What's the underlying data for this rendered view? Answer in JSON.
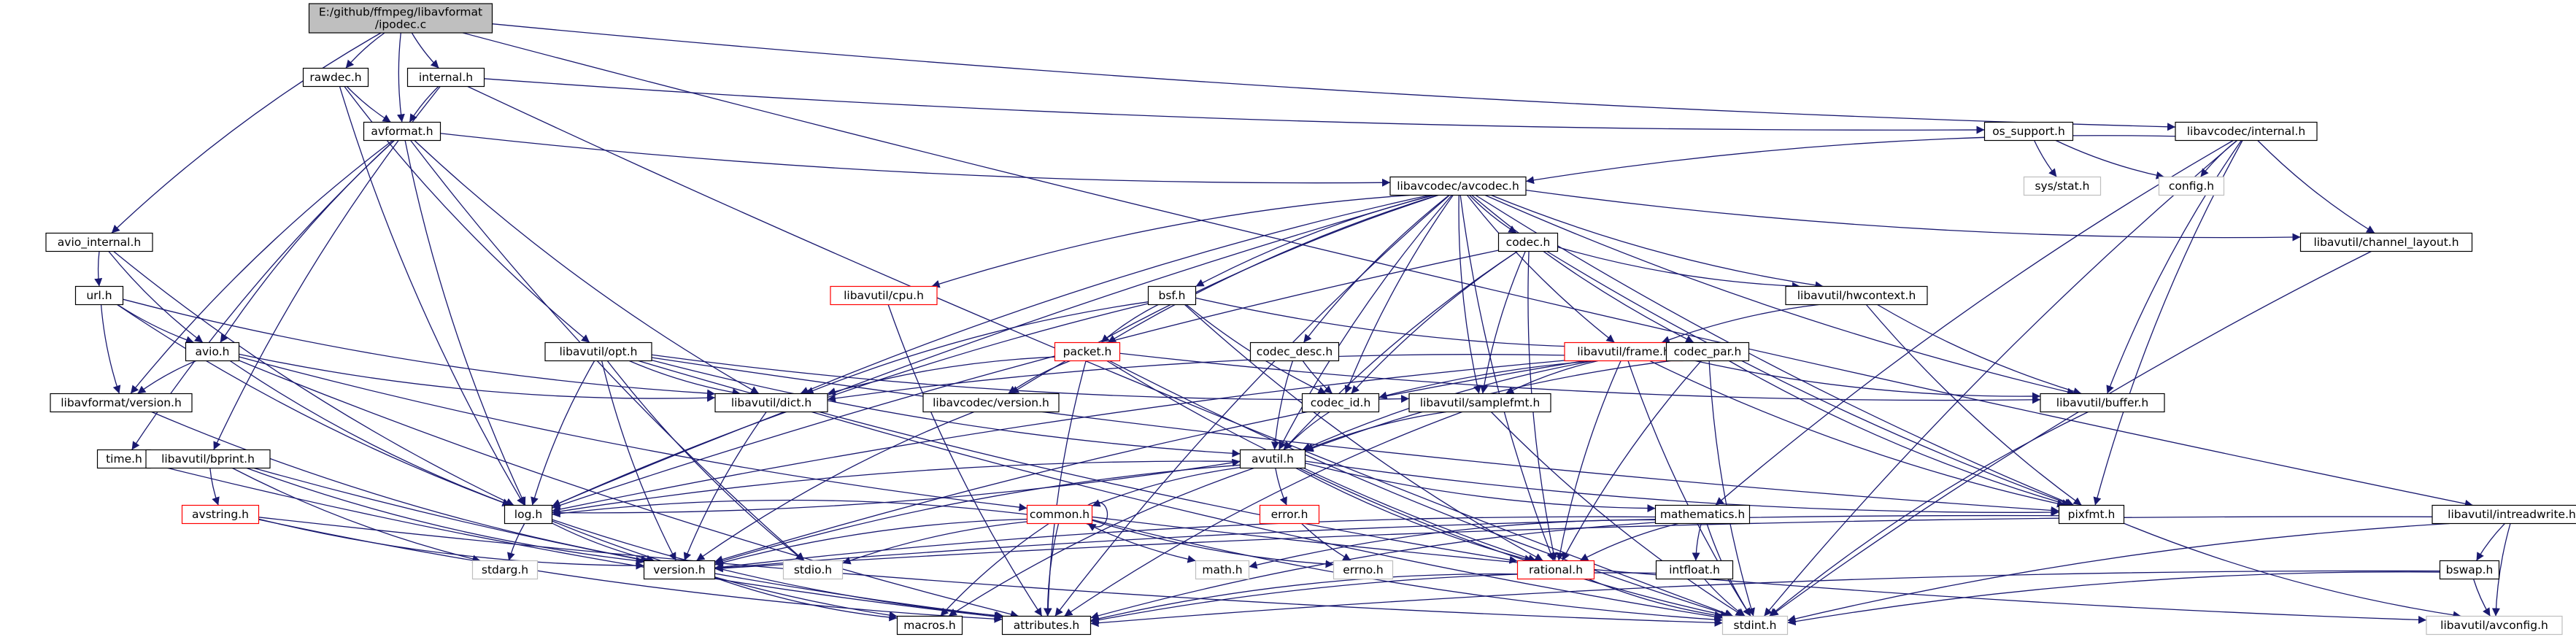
{
  "colors": {
    "edge": "#191970",
    "node_fill": "#ffffff",
    "node_border": "#000000",
    "root_fill": "#bfbfbf",
    "root_border": "#000000",
    "incomplete_border": "#ff0000",
    "missing_border": "#bfbfbf",
    "missing_text": "#7f7f7f"
  },
  "graph": {
    "nodes": [
      {
        "id": "ipodec",
        "lines": [
          "E:/github/ffmpeg/libavformat",
          "/ipodec.c"
        ],
        "kind": "root"
      },
      {
        "id": "rawdec",
        "lines": [
          "rawdec.h"
        ],
        "kind": "normal"
      },
      {
        "id": "internal",
        "lines": [
          "internal.h"
        ],
        "kind": "normal"
      },
      {
        "id": "avformat",
        "lines": [
          "avformat.h"
        ],
        "kind": "normal"
      },
      {
        "id": "os_support",
        "lines": [
          "os_support.h"
        ],
        "kind": "normal"
      },
      {
        "id": "lc_internal",
        "lines": [
          "libavcodec/internal.h"
        ],
        "kind": "normal"
      },
      {
        "id": "sys_stat",
        "lines": [
          "sys/stat.h"
        ],
        "kind": "missing"
      },
      {
        "id": "config",
        "lines": [
          "config.h"
        ],
        "kind": "missing"
      },
      {
        "id": "avcodec",
        "lines": [
          "libavcodec/avcodec.h"
        ],
        "kind": "normal"
      },
      {
        "id": "avio_internal",
        "lines": [
          "avio_internal.h"
        ],
        "kind": "normal"
      },
      {
        "id": "codec",
        "lines": [
          "codec.h"
        ],
        "kind": "normal"
      },
      {
        "id": "chlayout",
        "lines": [
          "libavutil/channel_layout.h"
        ],
        "kind": "normal"
      },
      {
        "id": "cpu",
        "lines": [
          "libavutil/cpu.h"
        ],
        "kind": "incomplete"
      },
      {
        "id": "bsf",
        "lines": [
          "bsf.h"
        ],
        "kind": "normal"
      },
      {
        "id": "hwcontext",
        "lines": [
          "libavutil/hwcontext.h"
        ],
        "kind": "normal"
      },
      {
        "id": "url",
        "lines": [
          "url.h"
        ],
        "kind": "normal"
      },
      {
        "id": "avio",
        "lines": [
          "avio.h"
        ],
        "kind": "normal"
      },
      {
        "id": "opt",
        "lines": [
          "libavutil/opt.h"
        ],
        "kind": "normal"
      },
      {
        "id": "packet",
        "lines": [
          "packet.h"
        ],
        "kind": "incomplete"
      },
      {
        "id": "codec_desc",
        "lines": [
          "codec_desc.h"
        ],
        "kind": "normal"
      },
      {
        "id": "frame",
        "lines": [
          "libavutil/frame.h"
        ],
        "kind": "incomplete"
      },
      {
        "id": "codec_par",
        "lines": [
          "codec_par.h"
        ],
        "kind": "normal"
      },
      {
        "id": "lf_version",
        "lines": [
          "libavformat/version.h"
        ],
        "kind": "normal"
      },
      {
        "id": "dict",
        "lines": [
          "libavutil/dict.h"
        ],
        "kind": "normal"
      },
      {
        "id": "lc_version",
        "lines": [
          "libavcodec/version.h"
        ],
        "kind": "normal"
      },
      {
        "id": "codec_id",
        "lines": [
          "codec_id.h"
        ],
        "kind": "normal"
      },
      {
        "id": "samplefmt",
        "lines": [
          "libavutil/samplefmt.h"
        ],
        "kind": "normal"
      },
      {
        "id": "buffer",
        "lines": [
          "libavutil/buffer.h"
        ],
        "kind": "normal"
      },
      {
        "id": "avutil",
        "lines": [
          "avutil.h"
        ],
        "kind": "normal"
      },
      {
        "id": "time",
        "lines": [
          "time.h"
        ],
        "kind": "normal"
      },
      {
        "id": "bprint",
        "lines": [
          "libavutil/bprint.h"
        ],
        "kind": "normal"
      },
      {
        "id": "intreadwrite",
        "lines": [
          "libavutil/intreadwrite.h"
        ],
        "kind": "normal"
      },
      {
        "id": "avstring",
        "lines": [
          "avstring.h"
        ],
        "kind": "incomplete"
      },
      {
        "id": "log",
        "lines": [
          "log.h"
        ],
        "kind": "normal"
      },
      {
        "id": "common",
        "lines": [
          "common.h"
        ],
        "kind": "incomplete"
      },
      {
        "id": "error",
        "lines": [
          "error.h"
        ],
        "kind": "incomplete"
      },
      {
        "id": "mathematics",
        "lines": [
          "mathematics.h"
        ],
        "kind": "normal"
      },
      {
        "id": "pixfmt",
        "lines": [
          "pixfmt.h"
        ],
        "kind": "normal"
      },
      {
        "id": "stdarg",
        "lines": [
          "stdarg.h"
        ],
        "kind": "missing"
      },
      {
        "id": "version",
        "lines": [
          "version.h"
        ],
        "kind": "normal"
      },
      {
        "id": "stdio",
        "lines": [
          "stdio.h"
        ],
        "kind": "missing"
      },
      {
        "id": "math",
        "lines": [
          "math.h"
        ],
        "kind": "missing"
      },
      {
        "id": "errno",
        "lines": [
          "errno.h"
        ],
        "kind": "missing"
      },
      {
        "id": "rational",
        "lines": [
          "rational.h"
        ],
        "kind": "incomplete"
      },
      {
        "id": "intfloat",
        "lines": [
          "intfloat.h"
        ],
        "kind": "normal"
      },
      {
        "id": "bswap",
        "lines": [
          "bswap.h"
        ],
        "kind": "normal"
      },
      {
        "id": "macros",
        "lines": [
          "macros.h"
        ],
        "kind": "normal"
      },
      {
        "id": "attributes",
        "lines": [
          "attributes.h"
        ],
        "kind": "normal"
      },
      {
        "id": "stdint",
        "lines": [
          "stdint.h"
        ],
        "kind": "missing"
      },
      {
        "id": "avconfig",
        "lines": [
          "libavutil/avconfig.h"
        ],
        "kind": "missing"
      }
    ],
    "edges": [
      [
        "ipodec",
        "rawdec"
      ],
      [
        "ipodec",
        "internal"
      ],
      [
        "ipodec",
        "avformat"
      ],
      [
        "ipodec",
        "avio_internal"
      ],
      [
        "ipodec",
        "lc_internal"
      ],
      [
        "ipodec",
        "intreadwrite"
      ],
      [
        "rawdec",
        "avformat"
      ],
      [
        "rawdec",
        "log"
      ],
      [
        "rawdec",
        "opt"
      ],
      [
        "internal",
        "avformat"
      ],
      [
        "internal",
        "os_support"
      ],
      [
        "internal",
        "bprint"
      ],
      [
        "internal",
        "stdint"
      ],
      [
        "avformat",
        "avcodec"
      ],
      [
        "avformat",
        "avio"
      ],
      [
        "avformat",
        "lf_version"
      ],
      [
        "avformat",
        "dict"
      ],
      [
        "avformat",
        "log"
      ],
      [
        "avformat",
        "time"
      ],
      [
        "avformat",
        "stdio"
      ],
      [
        "os_support",
        "sys_stat"
      ],
      [
        "os_support",
        "config"
      ],
      [
        "lc_internal",
        "avcodec"
      ],
      [
        "lc_internal",
        "config"
      ],
      [
        "lc_internal",
        "chlayout"
      ],
      [
        "lc_internal",
        "buffer"
      ],
      [
        "lc_internal",
        "mathematics"
      ],
      [
        "lc_internal",
        "pixfmt"
      ],
      [
        "lc_internal",
        "stdint"
      ],
      [
        "avcodec",
        "codec"
      ],
      [
        "avcodec",
        "cpu"
      ],
      [
        "avcodec",
        "bsf"
      ],
      [
        "avcodec",
        "chlayout"
      ],
      [
        "avcodec",
        "hwcontext"
      ],
      [
        "avcodec",
        "packet"
      ],
      [
        "avcodec",
        "codec_desc"
      ],
      [
        "avcodec",
        "frame"
      ],
      [
        "avcodec",
        "codec_par"
      ],
      [
        "avcodec",
        "dict"
      ],
      [
        "avcodec",
        "lc_version"
      ],
      [
        "avcodec",
        "codec_id"
      ],
      [
        "avcodec",
        "samplefmt"
      ],
      [
        "avcodec",
        "buffer"
      ],
      [
        "avcodec",
        "avutil"
      ],
      [
        "avcodec",
        "log"
      ],
      [
        "avcodec",
        "pixfmt"
      ],
      [
        "avcodec",
        "rational"
      ],
      [
        "avcodec",
        "attributes"
      ],
      [
        "avio_internal",
        "url"
      ],
      [
        "avio_internal",
        "avio"
      ],
      [
        "avio_internal",
        "log"
      ],
      [
        "codec",
        "hwcontext"
      ],
      [
        "codec",
        "codec_id"
      ],
      [
        "codec",
        "samplefmt"
      ],
      [
        "codec",
        "avutil"
      ],
      [
        "codec",
        "log"
      ],
      [
        "codec",
        "pixfmt"
      ],
      [
        "codec",
        "rational"
      ],
      [
        "chlayout",
        "stdint"
      ],
      [
        "cpu",
        "attributes"
      ],
      [
        "bsf",
        "packet"
      ],
      [
        "bsf",
        "codec_id"
      ],
      [
        "bsf",
        "codec_par"
      ],
      [
        "bsf",
        "dict"
      ],
      [
        "bsf",
        "log"
      ],
      [
        "bsf",
        "rational"
      ],
      [
        "hwcontext",
        "frame"
      ],
      [
        "hwcontext",
        "buffer"
      ],
      [
        "hwcontext",
        "pixfmt"
      ],
      [
        "url",
        "avio"
      ],
      [
        "url",
        "lf_version"
      ],
      [
        "url",
        "dict"
      ],
      [
        "url",
        "log"
      ],
      [
        "avio",
        "lf_version"
      ],
      [
        "avio",
        "dict"
      ],
      [
        "avio",
        "log"
      ],
      [
        "avio",
        "common"
      ],
      [
        "avio",
        "attributes"
      ],
      [
        "opt",
        "dict"
      ],
      [
        "opt",
        "avutil"
      ],
      [
        "opt",
        "log"
      ],
      [
        "opt",
        "pixfmt"
      ],
      [
        "opt",
        "samplefmt"
      ],
      [
        "opt",
        "version"
      ],
      [
        "opt",
        "rational"
      ],
      [
        "opt",
        "stdio"
      ],
      [
        "packet",
        "dict"
      ],
      [
        "packet",
        "lc_version"
      ],
      [
        "packet",
        "buffer"
      ],
      [
        "packet",
        "attributes"
      ],
      [
        "packet",
        "rational"
      ],
      [
        "packet",
        "stdint"
      ],
      [
        "codec_desc",
        "codec_id"
      ],
      [
        "codec_desc",
        "avutil"
      ],
      [
        "frame",
        "dict"
      ],
      [
        "frame",
        "buffer"
      ],
      [
        "frame",
        "samplefmt"
      ],
      [
        "frame",
        "avutil"
      ],
      [
        "frame",
        "log"
      ],
      [
        "frame",
        "pixfmt"
      ],
      [
        "frame",
        "rational"
      ],
      [
        "frame",
        "version"
      ],
      [
        "frame",
        "stdint"
      ],
      [
        "codec_par",
        "codec_id"
      ],
      [
        "codec_par",
        "avutil"
      ],
      [
        "codec_par",
        "pixfmt"
      ],
      [
        "codec_par",
        "rational"
      ],
      [
        "codec_par",
        "stdint"
      ],
      [
        "lf_version",
        "version"
      ],
      [
        "dict",
        "version"
      ],
      [
        "dict",
        "stdint"
      ],
      [
        "lc_version",
        "version"
      ],
      [
        "codec_id",
        "avutil"
      ],
      [
        "samplefmt",
        "avutil"
      ],
      [
        "samplefmt",
        "attributes"
      ],
      [
        "samplefmt",
        "stdint"
      ],
      [
        "buffer",
        "stdint"
      ],
      [
        "avutil",
        "log"
      ],
      [
        "avutil",
        "common"
      ],
      [
        "avutil",
        "error"
      ],
      [
        "avutil",
        "mathematics"
      ],
      [
        "avutil",
        "pixfmt"
      ],
      [
        "avutil",
        "rational"
      ],
      [
        "avutil",
        "version"
      ],
      [
        "avutil",
        "macros"
      ],
      [
        "avutil",
        "stdint"
      ],
      [
        "time",
        "attributes"
      ],
      [
        "bprint",
        "avstring"
      ],
      [
        "bprint",
        "version"
      ],
      [
        "bprint",
        "attributes"
      ],
      [
        "bprint",
        "stdarg"
      ],
      [
        "intreadwrite",
        "bswap"
      ],
      [
        "intreadwrite",
        "avconfig"
      ],
      [
        "intreadwrite",
        "stdint"
      ],
      [
        "intreadwrite",
        "version"
      ],
      [
        "avstring",
        "version"
      ],
      [
        "avstring",
        "attributes"
      ],
      [
        "avstring",
        "stdint"
      ],
      [
        "log",
        "version"
      ],
      [
        "log",
        "macros"
      ],
      [
        "log",
        "attributes"
      ],
      [
        "log",
        "stdarg"
      ],
      [
        "log",
        "avutil"
      ],
      [
        "common",
        "common"
      ],
      [
        "common",
        "attributes"
      ],
      [
        "common",
        "macros"
      ],
      [
        "common",
        "version"
      ],
      [
        "common",
        "math"
      ],
      [
        "common",
        "errno"
      ],
      [
        "common",
        "stdio"
      ],
      [
        "common",
        "stdint"
      ],
      [
        "common",
        "avconfig"
      ],
      [
        "common",
        "log"
      ],
      [
        "error",
        "errno"
      ],
      [
        "mathematics",
        "rational"
      ],
      [
        "mathematics",
        "intfloat"
      ],
      [
        "mathematics",
        "math"
      ],
      [
        "mathematics",
        "attributes"
      ],
      [
        "mathematics",
        "stdint"
      ],
      [
        "mathematics",
        "version"
      ],
      [
        "pixfmt",
        "version"
      ],
      [
        "pixfmt",
        "avconfig"
      ],
      [
        "version",
        "macros"
      ],
      [
        "rational",
        "attributes"
      ],
      [
        "rational",
        "stdint"
      ],
      [
        "intfloat",
        "attributes"
      ],
      [
        "intfloat",
        "stdint"
      ],
      [
        "bswap",
        "attributes"
      ],
      [
        "bswap",
        "avconfig"
      ],
      [
        "bswap",
        "stdint"
      ]
    ]
  }
}
